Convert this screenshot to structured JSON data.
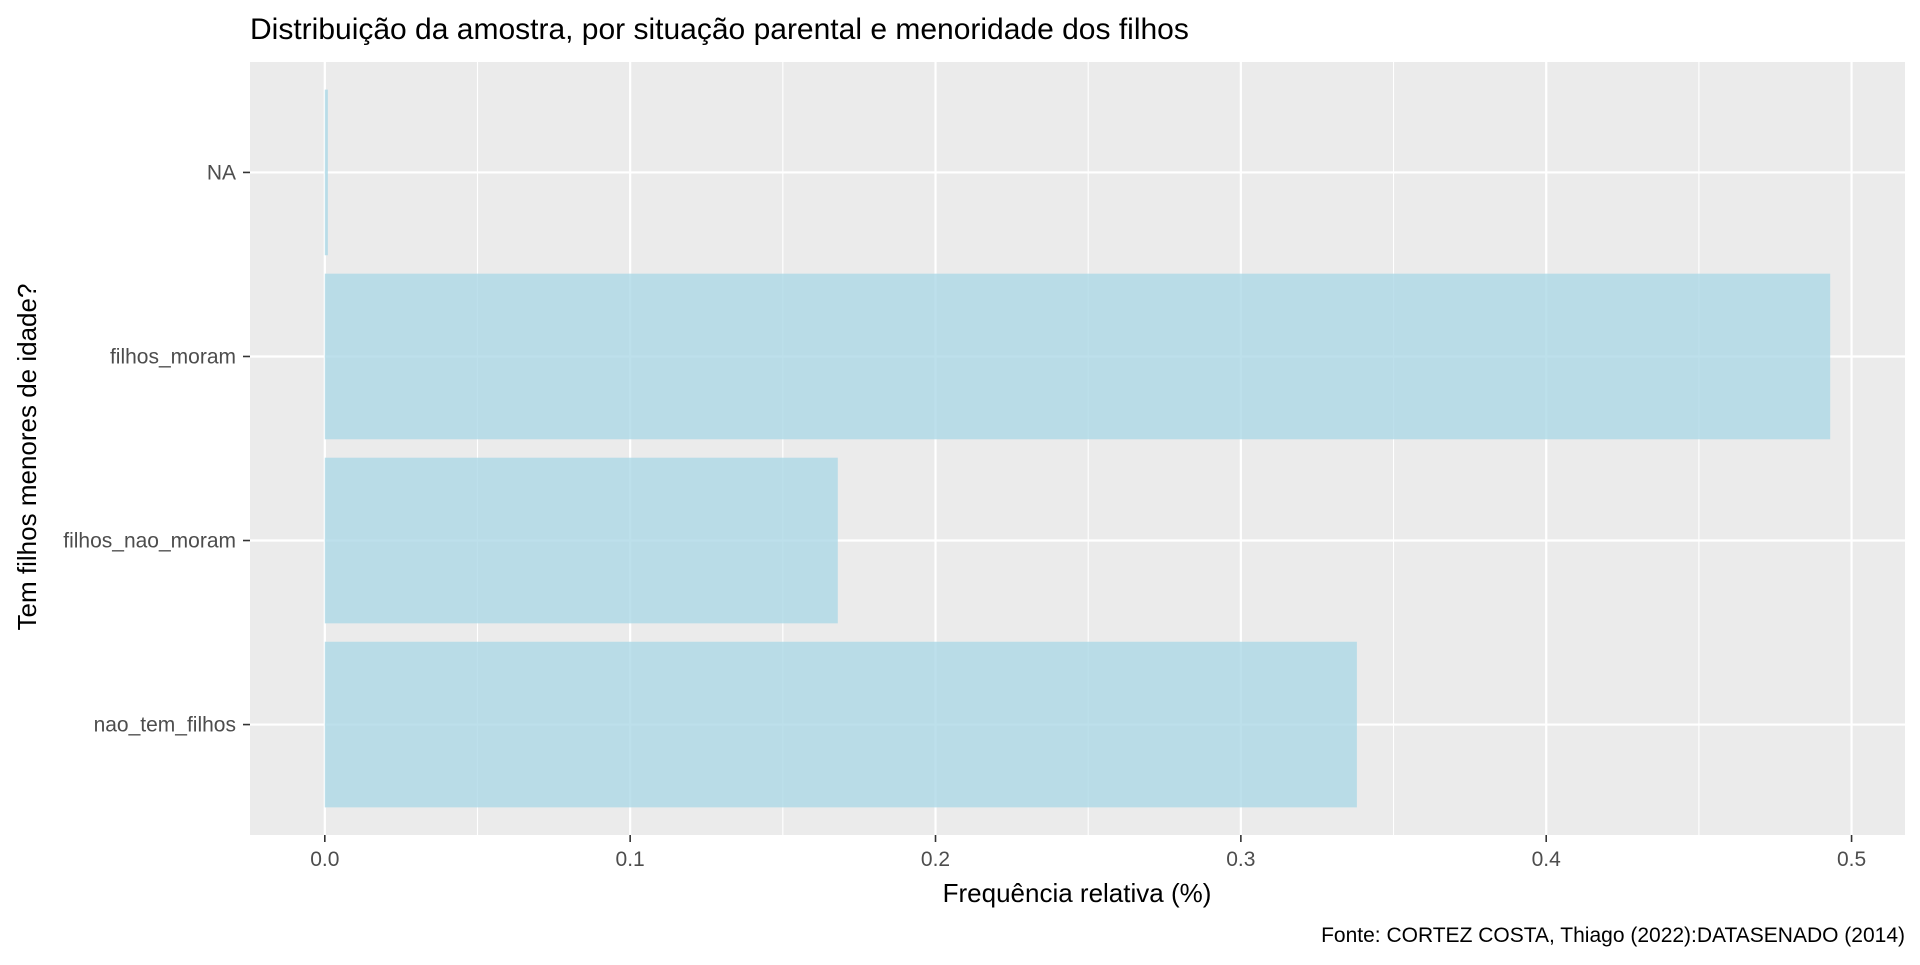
{
  "chart_data": {
    "type": "bar",
    "orientation": "horizontal",
    "title": "Distribuição da amostra, por situação parental e menoridade dos filhos",
    "xlabel": "Frequência relativa (%)",
    "ylabel": "Tem filhos menores de idade?",
    "caption": "Fonte: CORTEZ COSTA, Thiago (2022):DATASENADO (2014)",
    "categories": [
      "nao_tem_filhos",
      "filhos_nao_moram",
      "filhos_moram",
      "NA"
    ],
    "values": [
      0.338,
      0.168,
      0.493,
      0.001
    ],
    "xlim": [
      -0.0245,
      0.5175
    ],
    "xticks": [
      0.0,
      0.1,
      0.2,
      0.3,
      0.4,
      0.5
    ],
    "xtick_labels": [
      "0.0",
      "0.1",
      "0.2",
      "0.3",
      "0.4",
      "0.5"
    ],
    "grid": true,
    "legend": "none",
    "colors": {
      "bar_fill": "#add8e6",
      "panel_background": "#ebebeb",
      "grid_line": "#ffffff",
      "axis_text": "#4d4d4d",
      "title_text": "#000000"
    }
  }
}
